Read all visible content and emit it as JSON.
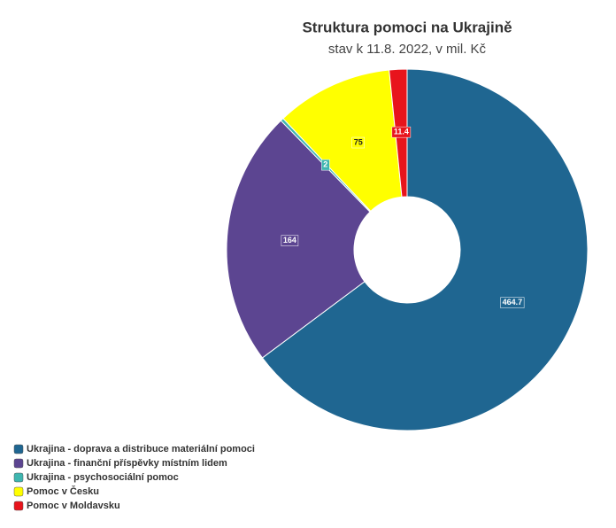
{
  "chart_data": {
    "type": "donut",
    "title": "Struktura pomoci na Ukrajině",
    "subtitle": "stav k 11.8. 2022, v mil. Kč",
    "categories": [
      "Ukrajina - doprava a distribuce materiální pomoci",
      "Ukrajina - finanční příspěvky místním lidem",
      "Ukrajina - psychosociální pomoc",
      "Pomoc v Česku",
      "Pomoc v Moldavsku"
    ],
    "values": [
      464.7,
      164,
      2,
      75,
      11.4
    ],
    "colors": [
      "#1f6691",
      "#5c4591",
      "#3fb6b0",
      "#ffff00",
      "#e8141c"
    ],
    "legend": "bottom-left"
  }
}
